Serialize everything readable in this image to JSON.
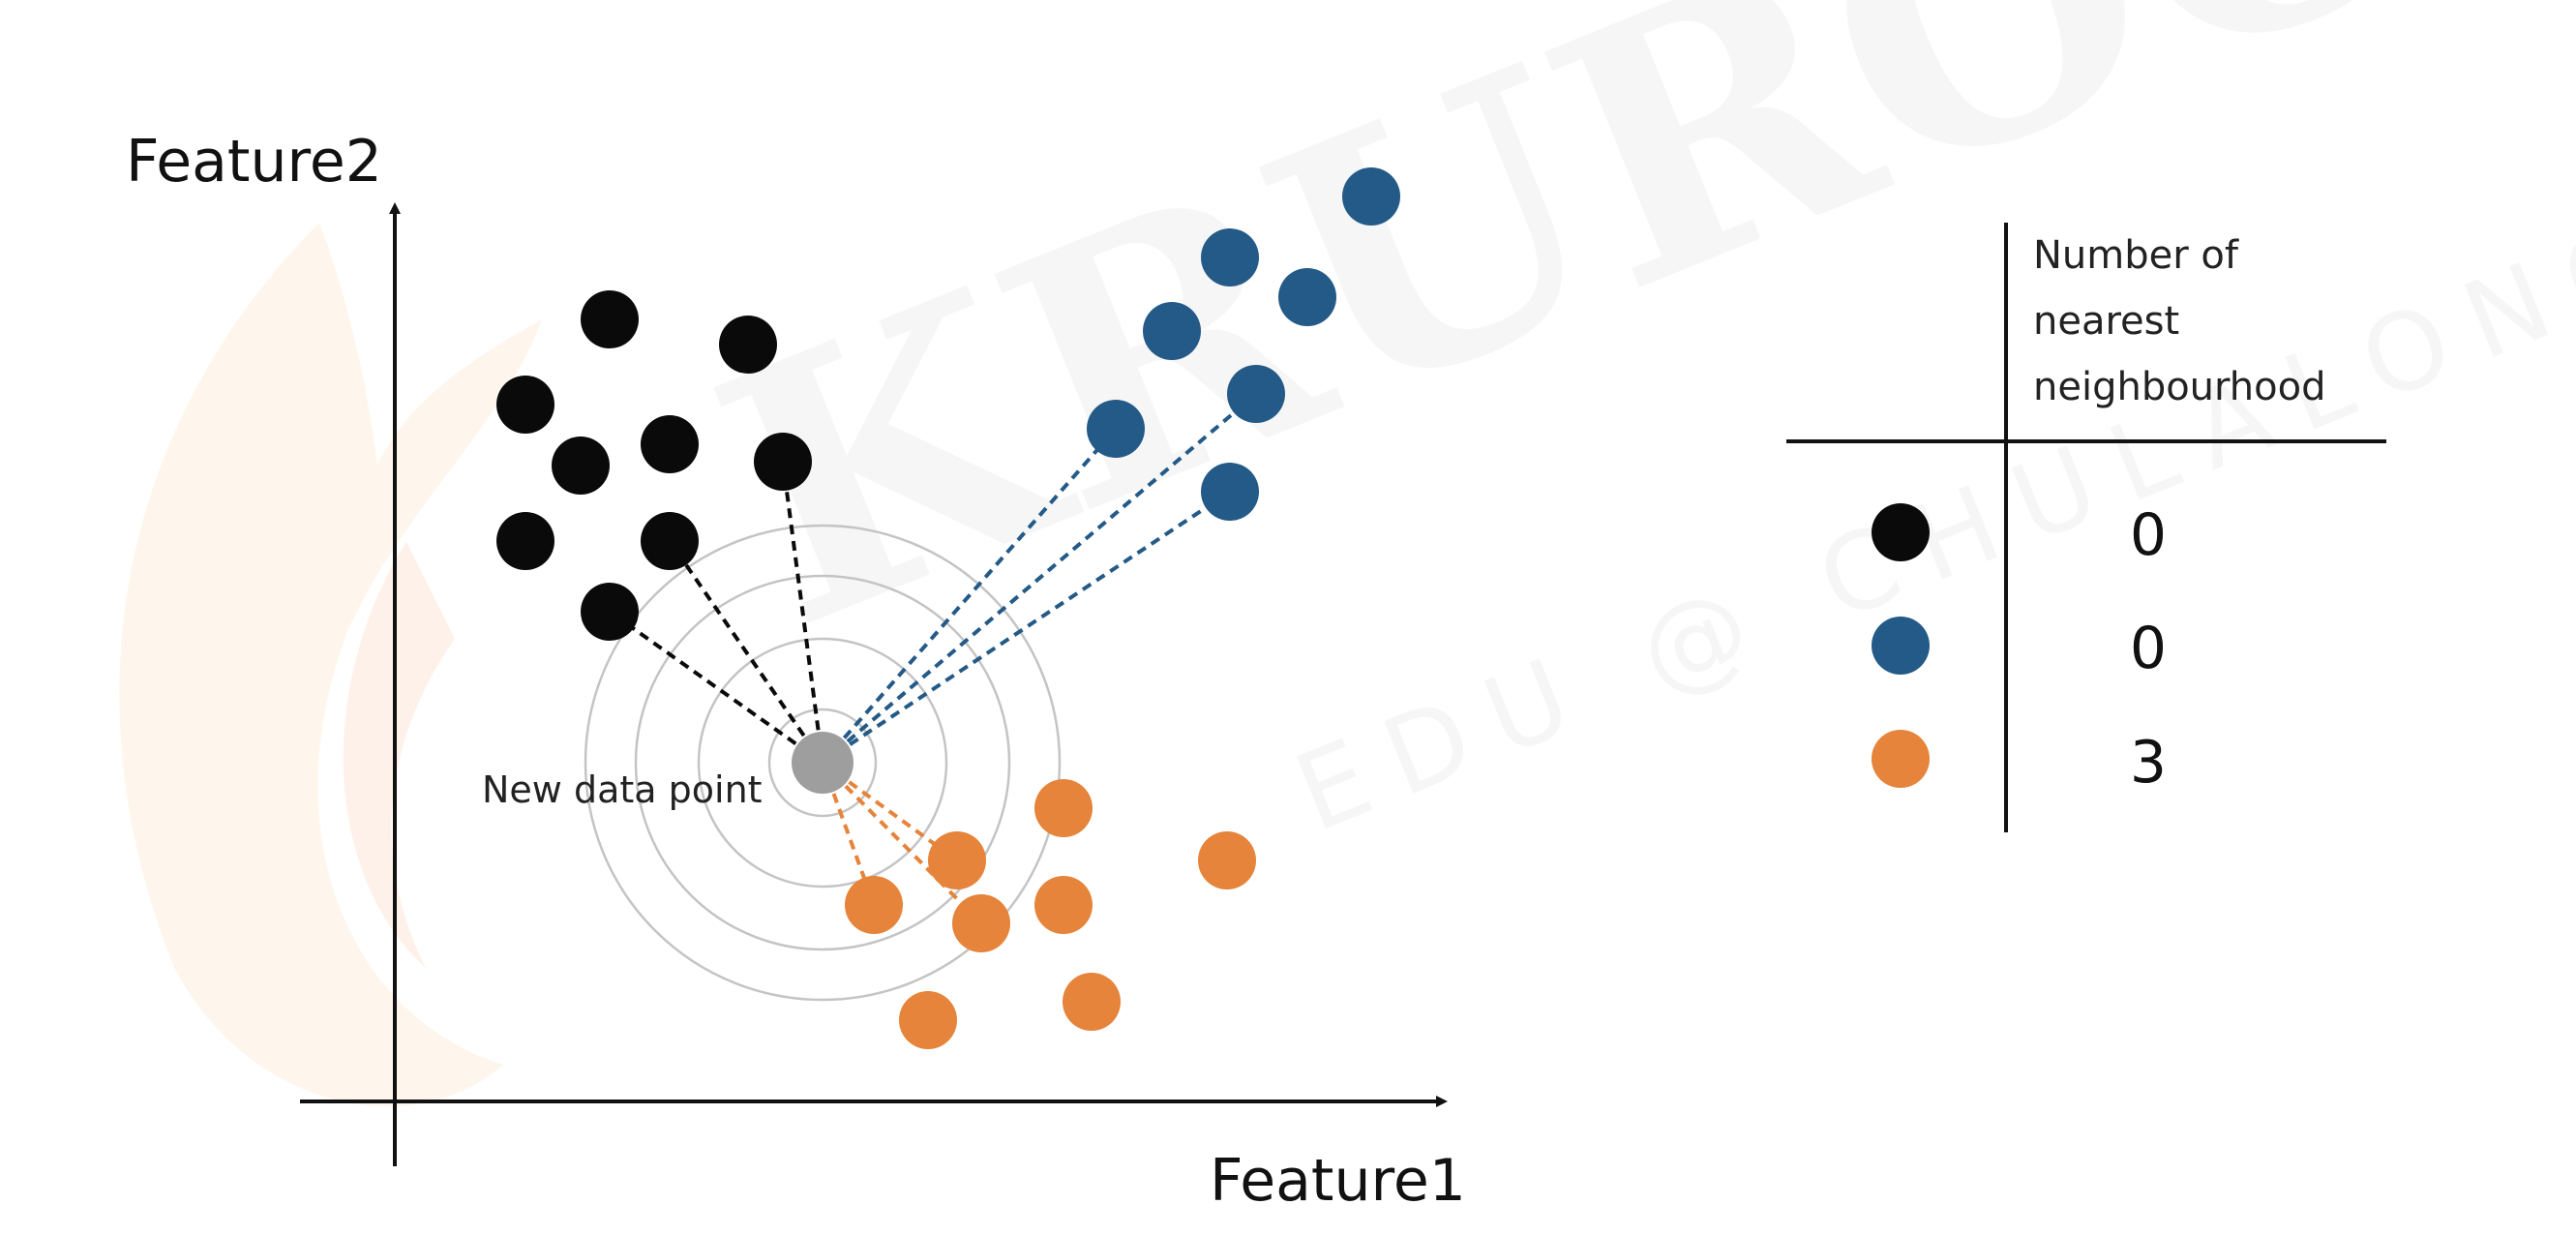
{
  "axes": {
    "y_label": "Feature2",
    "x_label": "Feature1"
  },
  "new_point_label": "New data point",
  "watermark": {
    "main": "KRUROO",
    "sub": "EDU @ CHULALONGKORN"
  },
  "legend_table": {
    "header": "Number of nearest neighbourhood",
    "header_lines": [
      "Number of",
      "nearest",
      "neighbourhood"
    ],
    "rows": [
      {
        "class": "black",
        "color": "#0a0a0a",
        "count": "0"
      },
      {
        "class": "blue",
        "color": "#245a87",
        "count": "0"
      },
      {
        "class": "orange",
        "color": "#e5843a",
        "count": "3"
      }
    ]
  },
  "colors": {
    "black": "#0a0a0a",
    "blue": "#245a87",
    "orange": "#e5843a",
    "new_point": "#9e9e9e",
    "ring": "#c4c4c4",
    "axis": "#111111"
  },
  "rings_count": 4
}
